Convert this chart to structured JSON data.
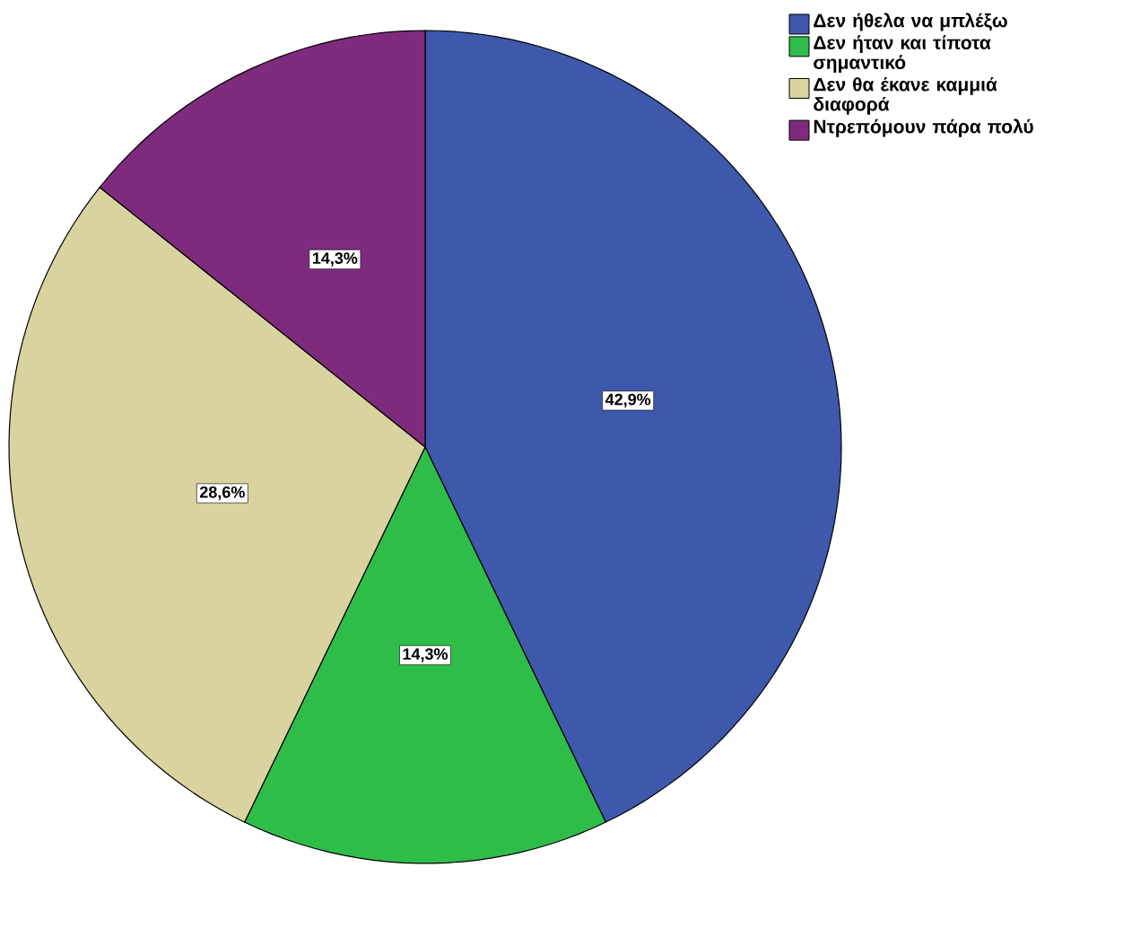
{
  "chart_data": {
    "type": "pie",
    "categories": [
      "Δεν ήθελα να μπλέξω",
      "Δεν ήταν και τίποτα σημαντικό",
      "Δεν θα έκανε καμμιά διαφορά",
      "Ντρεπόμουν πάρα πολύ"
    ],
    "values": [
      42.9,
      14.3,
      28.6,
      14.3
    ],
    "colors": [
      "#3e58ac",
      "#2fbd4a",
      "#d9d3a0",
      "#7e2b7e"
    ],
    "value_labels": [
      "42,9%",
      "14,3%",
      "28,6%",
      "14,3%"
    ],
    "legend": "top right"
  }
}
